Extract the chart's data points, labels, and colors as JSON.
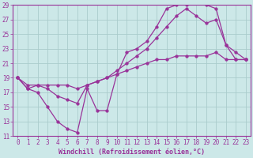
{
  "xlabel": "Windchill (Refroidissement éolien,°C)",
  "background_color": "#cce8e8",
  "grid_color": "#aacccc",
  "line_color": "#993399",
  "xlim": [
    -0.5,
    23.5
  ],
  "ylim": [
    11,
    29
  ],
  "xticks": [
    0,
    1,
    2,
    3,
    4,
    5,
    6,
    7,
    8,
    9,
    10,
    11,
    12,
    13,
    14,
    15,
    16,
    17,
    18,
    19,
    20,
    21,
    22,
    23
  ],
  "yticks": [
    11,
    13,
    15,
    17,
    19,
    21,
    23,
    25,
    27,
    29
  ],
  "line1_x": [
    0,
    1,
    2,
    3,
    4,
    5,
    6,
    7,
    8,
    9,
    10,
    11,
    12,
    13,
    14,
    15,
    16,
    17,
    18,
    19,
    20,
    21,
    22,
    23
  ],
  "line1_y": [
    19.0,
    17.5,
    17.0,
    15.0,
    13.0,
    12.0,
    11.5,
    17.5,
    14.5,
    14.5,
    19.5,
    22.5,
    23.0,
    24.0,
    26.0,
    28.5,
    29.0,
    29.0,
    29.5,
    29.0,
    28.5,
    23.5,
    21.5,
    21.5
  ],
  "line2_x": [
    0,
    1,
    2,
    3,
    4,
    5,
    6,
    7,
    8,
    9,
    10,
    11,
    12,
    13,
    14,
    15,
    16,
    17,
    18,
    19,
    20,
    21,
    22,
    23
  ],
  "line2_y": [
    19.0,
    17.5,
    18.0,
    17.5,
    16.5,
    16.0,
    15.5,
    18.0,
    18.5,
    19.0,
    20.0,
    21.0,
    22.0,
    23.0,
    24.5,
    26.0,
    27.5,
    28.5,
    27.5,
    26.5,
    27.0,
    23.5,
    22.5,
    21.5
  ],
  "line3_x": [
    0,
    1,
    2,
    3,
    4,
    5,
    6,
    7,
    8,
    9,
    10,
    11,
    12,
    13,
    14,
    15,
    16,
    17,
    18,
    19,
    20,
    21,
    22,
    23
  ],
  "line3_y": [
    19.0,
    18.0,
    18.0,
    18.0,
    18.0,
    18.0,
    17.5,
    18.0,
    18.5,
    19.0,
    19.5,
    20.0,
    20.5,
    21.0,
    21.5,
    21.5,
    22.0,
    22.0,
    22.0,
    22.0,
    22.5,
    21.5,
    21.5,
    21.5
  ]
}
